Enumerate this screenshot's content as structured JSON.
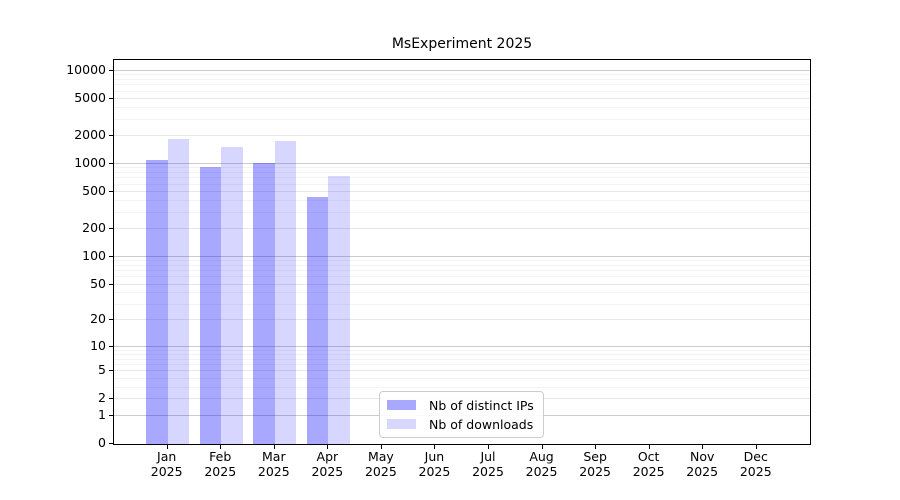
{
  "title": "MsExperiment 2025",
  "chart_data": {
    "type": "bar",
    "title": "MsExperiment 2025",
    "categories": [
      "Jan",
      "Feb",
      "Mar",
      "Apr",
      "May",
      "Jun",
      "Jul",
      "Aug",
      "Sep",
      "Oct",
      "Nov",
      "Dec"
    ],
    "year": "2025",
    "series": [
      {
        "name": "Nb of distinct IPs",
        "color": "#0000ff57",
        "values": [
          1080,
          900,
          1010,
          435,
          null,
          null,
          null,
          null,
          null,
          null,
          null,
          null
        ]
      },
      {
        "name": "Nb of downloads",
        "color": "#0000ff29",
        "values": [
          1830,
          1480,
          1740,
          730,
          null,
          null,
          null,
          null,
          null,
          null,
          null,
          null
        ]
      }
    ],
    "y_ticks": [
      0,
      1,
      2,
      5,
      10,
      20,
      50,
      100,
      200,
      500,
      1000,
      2000,
      5000,
      10000
    ],
    "y_scale": "log10(value+1)",
    "ylim": [
      0,
      13000
    ],
    "xlabel": "",
    "ylabel": "",
    "grid": "horizontal major + minor",
    "legend_position": "inside-bottom-center"
  },
  "colors": {
    "background": "#ffffff",
    "spine": "#000000",
    "text": "#000000",
    "grid_decade": "#cccccc",
    "grid_major": "#e7e7e7",
    "grid_minor": "#f3f3f3",
    "legend_border": "#cccccc"
  }
}
